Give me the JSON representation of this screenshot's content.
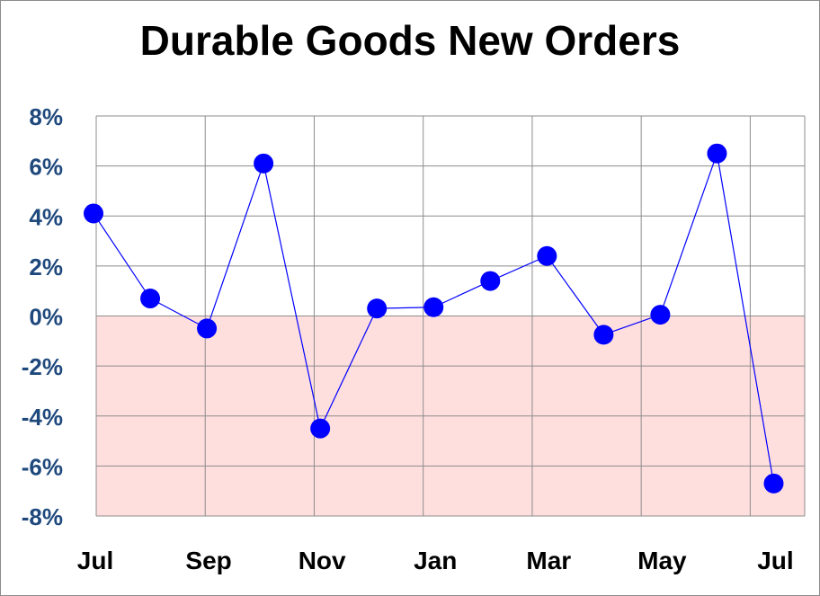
{
  "chart_data": {
    "type": "line",
    "title": "Durable Goods New Orders",
    "xlabel": "",
    "ylabel": "",
    "x_tick_labels": [
      "Jul",
      "",
      "Sep",
      "",
      "Nov",
      "",
      "Jan",
      "",
      "Mar",
      "",
      "May",
      "",
      "Jul"
    ],
    "y_tick_labels": [
      "8%",
      "6%",
      "4%",
      "2%",
      "0%",
      "-2%",
      "-4%",
      "-6%",
      "-8%"
    ],
    "y_ticks": [
      8,
      6,
      4,
      2,
      0,
      -2,
      -4,
      -6,
      -8
    ],
    "ylim": [
      -8,
      8
    ],
    "grid": true,
    "negative_region_shaded": true,
    "series": [
      {
        "values": [
          4.1,
          0.7,
          -0.5,
          6.1,
          -4.5,
          0.3,
          0.35,
          1.4,
          2.4,
          -0.75,
          0.05,
          6.5,
          -6.7
        ]
      }
    ],
    "colors": {
      "line": "#0000ff",
      "marker": "#0000ff",
      "negative_band": "#ffdede",
      "grid": "#8c8c8c",
      "y_tick_text": "#1f497d",
      "x_tick_text": "#000000"
    }
  }
}
